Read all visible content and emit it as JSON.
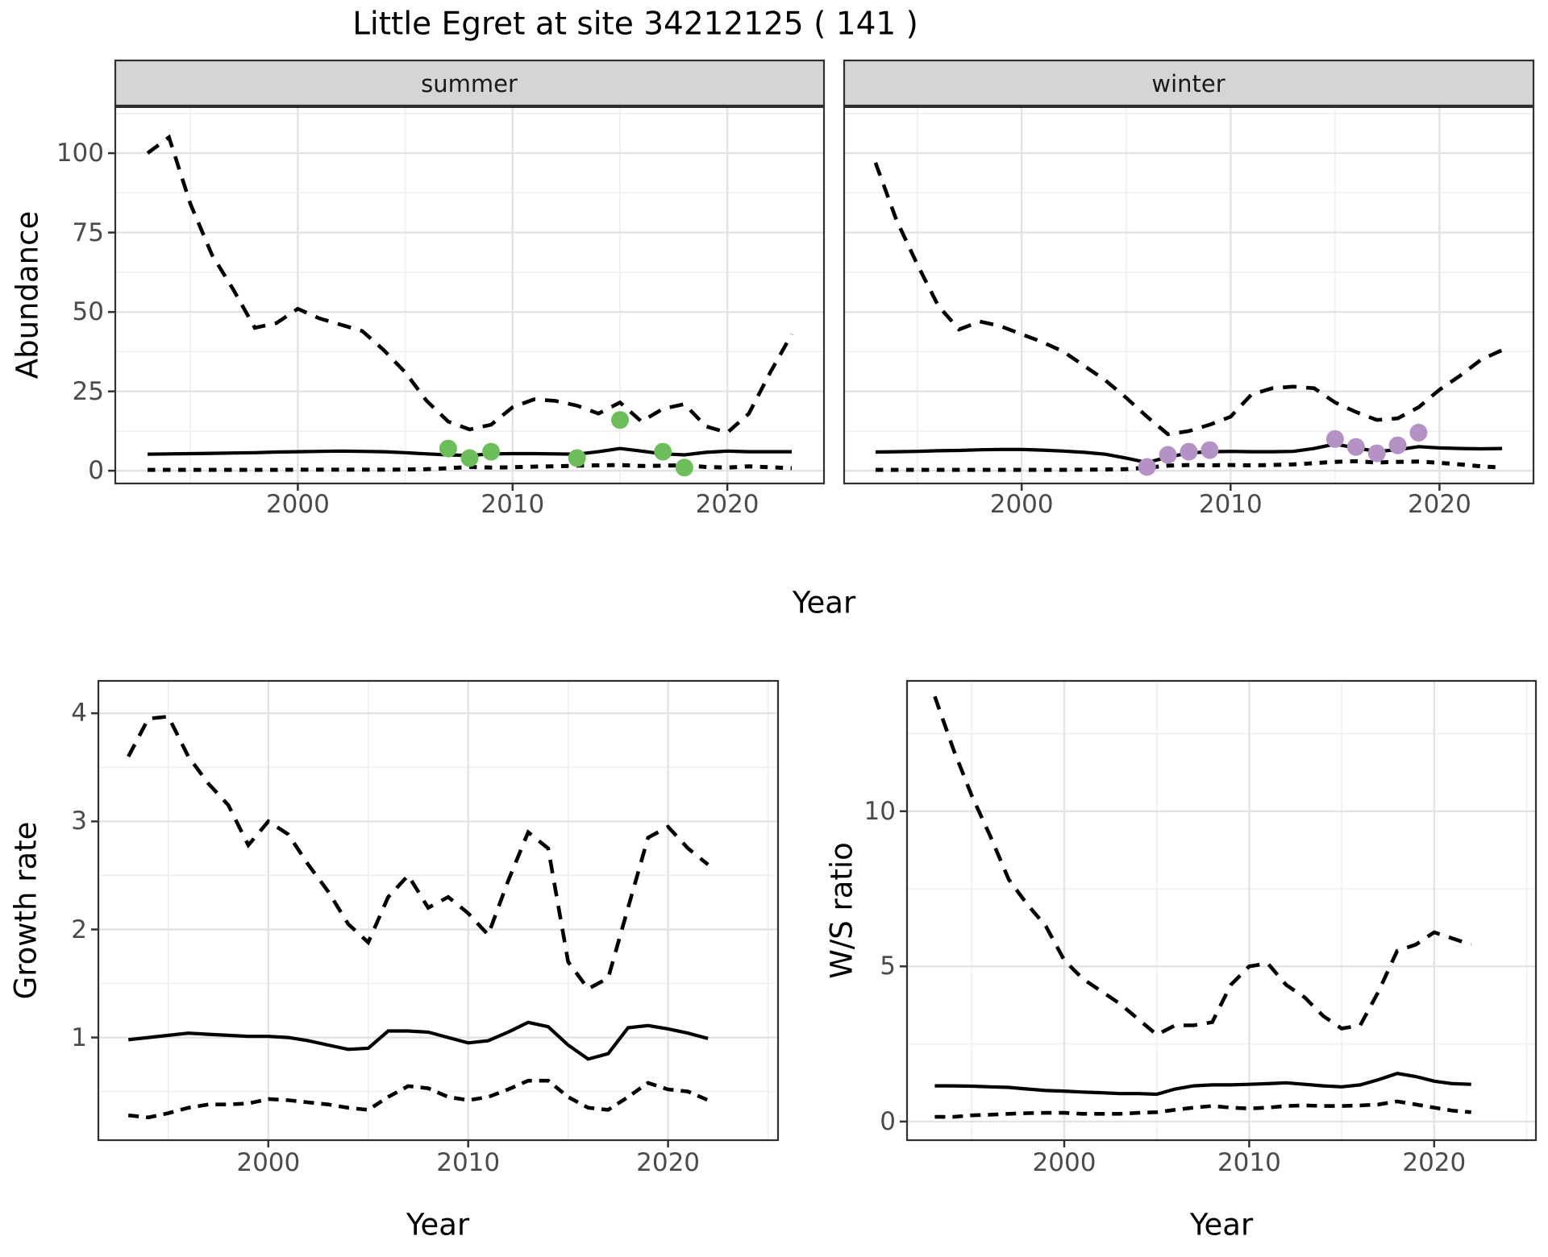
{
  "title": "Little Egret at site 34212125 ( 141 )",
  "labels": {
    "abundance": "Abundance",
    "year": "Year"
  },
  "colors": {
    "summer_point": "#6CBE5A",
    "winter_point": "#B592C6",
    "line": "#000000",
    "strip_bg": "#D5D5D5",
    "panel_border": "#2F2F2F",
    "grid_major": "#E3E3E3",
    "grid_minor": "#F0F0F0",
    "tick_text": "#4A4A4A"
  },
  "chart_data": [
    {
      "id": "abundance-summer",
      "type": "line",
      "facet_label": "summer",
      "ylabel": "Abundance",
      "xlabel": "Year",
      "xlim": [
        1991.5,
        2024.5
      ],
      "ylim": [
        -4,
        115
      ],
      "xticks": [
        2000,
        2010,
        2020
      ],
      "xticks_minor": [
        1995,
        2005,
        2015
      ],
      "yticks": [
        0,
        25,
        50,
        75,
        100
      ],
      "yticks_minor": [
        12.5,
        37.5,
        62.5,
        87.5,
        112.5
      ],
      "grid": true,
      "legend": "none",
      "x": [
        1993,
        1994,
        1995,
        1996,
        1997,
        1998,
        1999,
        2000,
        2001,
        2002,
        2003,
        2004,
        2005,
        2006,
        2007,
        2008,
        2009,
        2010,
        2011,
        2012,
        2013,
        2014,
        2015,
        2016,
        2017,
        2018,
        2019,
        2020,
        2021,
        2022,
        2023
      ],
      "series": [
        {
          "name": "upper_ci",
          "style": "dashed",
          "values": [
            100,
            105,
            84,
            68,
            57,
            45,
            46.5,
            51,
            48,
            46,
            44,
            38,
            31,
            22,
            15.5,
            13,
            14.5,
            20,
            22.5,
            22,
            20.5,
            18,
            21.5,
            15.5,
            19.5,
            21,
            14,
            12,
            18,
            31,
            43
          ]
        },
        {
          "name": "median",
          "style": "solid",
          "values": [
            5.2,
            5.3,
            5.4,
            5.5,
            5.6,
            5.7,
            5.9,
            6.0,
            6.1,
            6.2,
            6.1,
            6.0,
            5.7,
            5.3,
            5.0,
            4.8,
            5.3,
            5.4,
            5.4,
            5.3,
            5.2,
            6.0,
            7.0,
            6.2,
            5.3,
            5.0,
            5.8,
            6.2,
            6.0,
            6.0,
            6.0
          ]
        },
        {
          "name": "lower_ci",
          "style": "dashed_short",
          "values": [
            0.3,
            0.3,
            0.3,
            0.3,
            0.3,
            0.3,
            0.3,
            0.35,
            0.35,
            0.35,
            0.35,
            0.35,
            0.4,
            0.5,
            0.8,
            1.2,
            1.0,
            1.1,
            1.3,
            1.4,
            1.6,
            1.7,
            1.8,
            1.5,
            1.6,
            1.7,
            1.2,
            1.0,
            1.4,
            1.1,
            0.8
          ]
        }
      ],
      "points": {
        "name": "observed-counts-summer",
        "color": "#6CBE5A",
        "x": [
          2007,
          2008,
          2009,
          2013,
          2015,
          2017,
          2018
        ],
        "y": [
          7,
          4,
          6,
          4,
          16,
          6,
          1
        ]
      }
    },
    {
      "id": "abundance-winter",
      "type": "line",
      "facet_label": "winter",
      "ylabel": "Abundance",
      "xlabel": "Year",
      "xlim": [
        1991.5,
        2024.5
      ],
      "ylim": [
        -4,
        115
      ],
      "xticks": [
        2000,
        2010,
        2020
      ],
      "xticks_minor": [
        1995,
        2005,
        2015
      ],
      "yticks": [
        0,
        25,
        50,
        75,
        100
      ],
      "yticks_minor": [
        12.5,
        37.5,
        62.5,
        87.5,
        112.5
      ],
      "grid": true,
      "legend": "none",
      "x": [
        1993,
        1994,
        1995,
        1996,
        1997,
        1998,
        1999,
        2000,
        2001,
        2002,
        2003,
        2004,
        2005,
        2006,
        2007,
        2008,
        2009,
        2010,
        2011,
        2012,
        2013,
        2014,
        2015,
        2016,
        2017,
        2018,
        2019,
        2020,
        2021,
        2022,
        2023
      ],
      "series": [
        {
          "name": "upper_ci",
          "style": "dashed",
          "values": [
            97,
            79,
            65,
            52,
            44.5,
            47,
            45.5,
            43,
            40.5,
            37.5,
            33,
            28.5,
            23,
            17,
            11.5,
            12.5,
            14.5,
            17,
            24,
            26,
            26.5,
            26,
            21.5,
            18.5,
            16,
            16.5,
            20,
            25.5,
            30,
            35,
            38
          ]
        },
        {
          "name": "median",
          "style": "solid",
          "values": [
            5.9,
            6.0,
            6.1,
            6.3,
            6.4,
            6.6,
            6.7,
            6.7,
            6.5,
            6.2,
            5.8,
            5.2,
            4.0,
            2.6,
            4.3,
            5.6,
            6.0,
            6.1,
            6.0,
            6.0,
            6.1,
            7.0,
            8.4,
            7.2,
            6.1,
            6.6,
            7.6,
            7.2,
            7.0,
            6.9,
            7.0
          ]
        },
        {
          "name": "lower_ci",
          "style": "dashed_short",
          "values": [
            0.3,
            0.3,
            0.3,
            0.3,
            0.3,
            0.3,
            0.3,
            0.3,
            0.3,
            0.3,
            0.35,
            0.4,
            0.5,
            1.0,
            1.6,
            1.8,
            1.7,
            1.8,
            1.7,
            1.8,
            2.0,
            2.4,
            2.8,
            3.0,
            2.6,
            2.8,
            2.9,
            2.5,
            2.0,
            1.4,
            1.0
          ]
        }
      ],
      "points": {
        "name": "observed-counts-winter",
        "color": "#B592C6",
        "x": [
          2006,
          2007,
          2008,
          2009,
          2015,
          2016,
          2017,
          2018,
          2019
        ],
        "y": [
          1.2,
          5,
          6,
          6.5,
          10,
          7.5,
          5.5,
          8,
          12
        ]
      }
    },
    {
      "id": "growth-rate",
      "type": "line",
      "facet_label": "",
      "ylabel": "Growth rate",
      "xlabel": "Year",
      "xlim": [
        1991.5,
        2025.5
      ],
      "ylim": [
        0.05,
        4.3
      ],
      "xticks": [
        2000,
        2010,
        2020
      ],
      "xticks_minor": [
        1995,
        2005,
        2015,
        2025
      ],
      "yticks": [
        1,
        2,
        3,
        4
      ],
      "yticks_minor": [
        0.5,
        1.5,
        2.5,
        3.5
      ],
      "grid": true,
      "legend": "none",
      "x": [
        1993,
        1994,
        1995,
        1996,
        1997,
        1998,
        1999,
        2000,
        2001,
        2002,
        2003,
        2004,
        2005,
        2006,
        2007,
        2008,
        2009,
        2010,
        2011,
        2012,
        2013,
        2014,
        2015,
        2016,
        2017,
        2018,
        2019,
        2020,
        2021,
        2022
      ],
      "series": [
        {
          "name": "upper_ci",
          "style": "dashed",
          "values": [
            3.6,
            3.95,
            3.97,
            3.6,
            3.35,
            3.15,
            2.78,
            3.0,
            2.88,
            2.6,
            2.35,
            2.05,
            1.88,
            2.3,
            2.5,
            2.2,
            2.3,
            2.15,
            1.95,
            2.45,
            2.9,
            2.75,
            1.7,
            1.45,
            1.55,
            2.2,
            2.85,
            2.95,
            2.75,
            2.6
          ]
        },
        {
          "name": "median",
          "style": "solid",
          "values": [
            0.98,
            1.0,
            1.02,
            1.04,
            1.03,
            1.02,
            1.01,
            1.01,
            1.0,
            0.97,
            0.93,
            0.89,
            0.9,
            1.06,
            1.06,
            1.05,
            1.0,
            0.95,
            0.97,
            1.05,
            1.14,
            1.1,
            0.93,
            0.8,
            0.85,
            1.09,
            1.11,
            1.08,
            1.04,
            0.99
          ]
        },
        {
          "name": "lower_ci",
          "style": "dashed_med",
          "values": [
            0.28,
            0.26,
            0.3,
            0.35,
            0.38,
            0.38,
            0.39,
            0.43,
            0.42,
            0.4,
            0.38,
            0.35,
            0.33,
            0.45,
            0.55,
            0.53,
            0.45,
            0.42,
            0.45,
            0.52,
            0.6,
            0.6,
            0.45,
            0.35,
            0.33,
            0.45,
            0.58,
            0.52,
            0.5,
            0.42
          ]
        }
      ],
      "points": null
    },
    {
      "id": "ws-ratio",
      "type": "line",
      "facet_label": "",
      "ylabel": "W/S ratio",
      "xlabel": "Year",
      "xlim": [
        1991.5,
        2025.5
      ],
      "ylim": [
        -0.6,
        14.2
      ],
      "xticks": [
        2000,
        2010,
        2020
      ],
      "xticks_minor": [
        1995,
        2005,
        2015,
        2025
      ],
      "yticks": [
        0,
        5,
        10
      ],
      "yticks_minor": [
        2.5,
        7.5,
        12.5
      ],
      "grid": true,
      "legend": "none",
      "x": [
        1993,
        1994,
        1995,
        1996,
        1997,
        1998,
        1999,
        2000,
        2001,
        2002,
        2003,
        2004,
        2005,
        2006,
        2007,
        2008,
        2009,
        2010,
        2011,
        2012,
        2013,
        2014,
        2015,
        2016,
        2017,
        2018,
        2019,
        2020,
        2021,
        2022
      ],
      "series": [
        {
          "name": "upper_ci",
          "style": "dashed",
          "values": [
            13.7,
            12,
            10.5,
            9.2,
            7.8,
            7.0,
            6.3,
            5.2,
            4.6,
            4.2,
            3.8,
            3.3,
            2.8,
            3.1,
            3.1,
            3.2,
            4.4,
            5.0,
            5.1,
            4.4,
            4.0,
            3.4,
            3.0,
            3.1,
            4.2,
            5.5,
            5.7,
            6.1,
            5.9,
            5.7
          ]
        },
        {
          "name": "median",
          "style": "solid",
          "values": [
            1.15,
            1.15,
            1.14,
            1.12,
            1.1,
            1.05,
            1.0,
            0.98,
            0.95,
            0.93,
            0.9,
            0.9,
            0.88,
            1.05,
            1.15,
            1.18,
            1.18,
            1.2,
            1.22,
            1.25,
            1.2,
            1.15,
            1.12,
            1.18,
            1.35,
            1.55,
            1.45,
            1.3,
            1.22,
            1.2
          ]
        },
        {
          "name": "lower_ci",
          "style": "dashed_med",
          "values": [
            0.15,
            0.15,
            0.2,
            0.22,
            0.25,
            0.27,
            0.28,
            0.28,
            0.25,
            0.25,
            0.25,
            0.28,
            0.3,
            0.38,
            0.45,
            0.5,
            0.45,
            0.42,
            0.45,
            0.5,
            0.52,
            0.5,
            0.5,
            0.52,
            0.55,
            0.65,
            0.55,
            0.45,
            0.35,
            0.3
          ]
        }
      ],
      "points": null
    }
  ]
}
